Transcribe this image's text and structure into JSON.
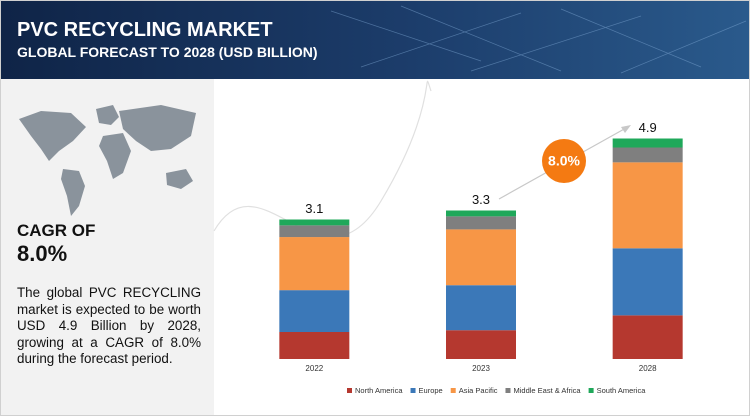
{
  "header": {
    "title": "PVC RECYCLING MARKET",
    "subtitle": "GLOBAL FORECAST TO 2028 (USD BILLION)"
  },
  "sidebar": {
    "cagr_label": "CAGR OF",
    "cagr_value": "8.0%",
    "description": "The global PVC RECYCLING market is expected to be worth USD 4.9 Billion by 2028, growing at a CAGR of 8.0% during the forecast period."
  },
  "badge": "8.0%",
  "chart_data": {
    "type": "stacked_bar",
    "categories": [
      "2022",
      "2023",
      "2028"
    ],
    "series": [
      {
        "name": "North America",
        "color": "#b5382f",
        "values": [
          0.6,
          0.64,
          0.97
        ]
      },
      {
        "name": "Europe",
        "color": "#3b78b8",
        "values": [
          0.93,
          1.0,
          1.49
        ]
      },
      {
        "name": "Asia Pacific",
        "color": "#f79646",
        "values": [
          1.18,
          1.24,
          1.91
        ]
      },
      {
        "name": "Middle East & Africa",
        "color": "#7f7f7f",
        "values": [
          0.26,
          0.29,
          0.33
        ]
      },
      {
        "name": "South America",
        "color": "#1fa85a",
        "values": [
          0.13,
          0.13,
          0.2
        ]
      }
    ],
    "totals": [
      3.1,
      3.3,
      4.9
    ],
    "ylim": [
      0,
      5
    ]
  }
}
